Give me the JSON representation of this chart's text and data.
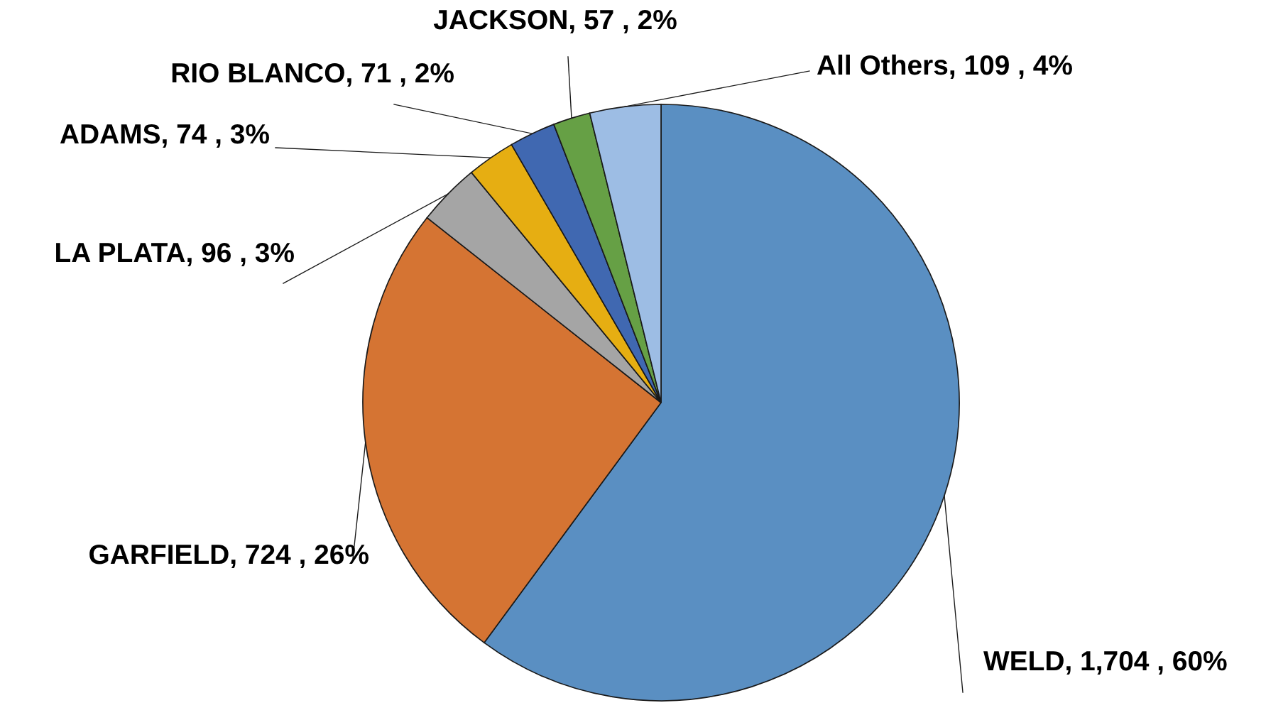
{
  "chart_data": {
    "type": "pie",
    "categories": [
      "WELD",
      "GARFIELD",
      "LA PLATA",
      "ADAMS",
      "RIO BLANCO",
      "JACKSON",
      "All Others"
    ],
    "values": [
      1704,
      724,
      96,
      74,
      71,
      57,
      109
    ],
    "colors": [
      "#5a8fc2",
      "#d57433",
      "#a5a5a5",
      "#e6ae12",
      "#4068b1",
      "#66a045",
      "#9dbde4"
    ],
    "value_labels": [
      "1,704 , 60%",
      "724 , 26%",
      "96 , 3%",
      "74 , 3%",
      "71 , 2%",
      "57 , 2%",
      "109 , 4%"
    ]
  }
}
